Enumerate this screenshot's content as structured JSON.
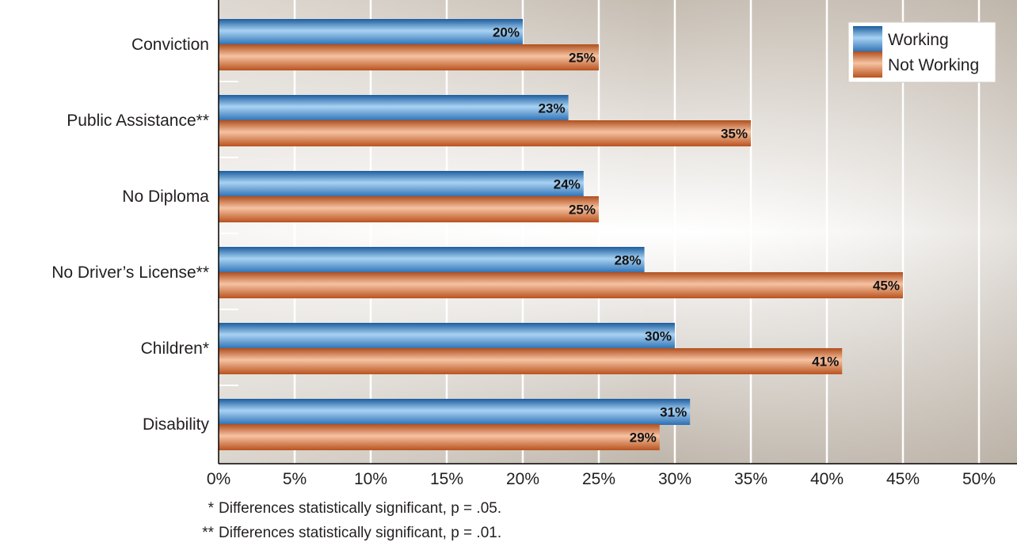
{
  "chart_data": {
    "type": "bar",
    "orientation": "horizontal",
    "categories": [
      "Conviction",
      "Public Assistance**",
      "No Diploma",
      "No Driver’s License**",
      "Children*",
      "Disability"
    ],
    "series": [
      {
        "name": "Working",
        "values": [
          20,
          23,
          24,
          28,
          30,
          31
        ],
        "labels": [
          "20%",
          "23%",
          "24%",
          "28%",
          "30%",
          "31%"
        ],
        "color": "#2f7bbf"
      },
      {
        "name": "Not Working",
        "values": [
          25,
          35,
          25,
          45,
          41,
          29
        ],
        "labels": [
          "25%",
          "35%",
          "25%",
          "45%",
          "41%",
          "29%"
        ],
        "color": "#c4622d"
      }
    ],
    "x_ticks": [
      "0%",
      "5%",
      "10%",
      "15%",
      "20%",
      "25%",
      "30%",
      "35%",
      "40%",
      "45%",
      "50%"
    ],
    "xlim": [
      0,
      52.5
    ],
    "grid": true,
    "legend": "top-right",
    "title": "",
    "xlabel": "",
    "ylabel": ""
  },
  "footnotes": [
    {
      "mark": "*",
      "text": "Differences statistically significant, p = .05."
    },
    {
      "mark": "**",
      "text": "Differences statistically significant, p = .01."
    }
  ]
}
